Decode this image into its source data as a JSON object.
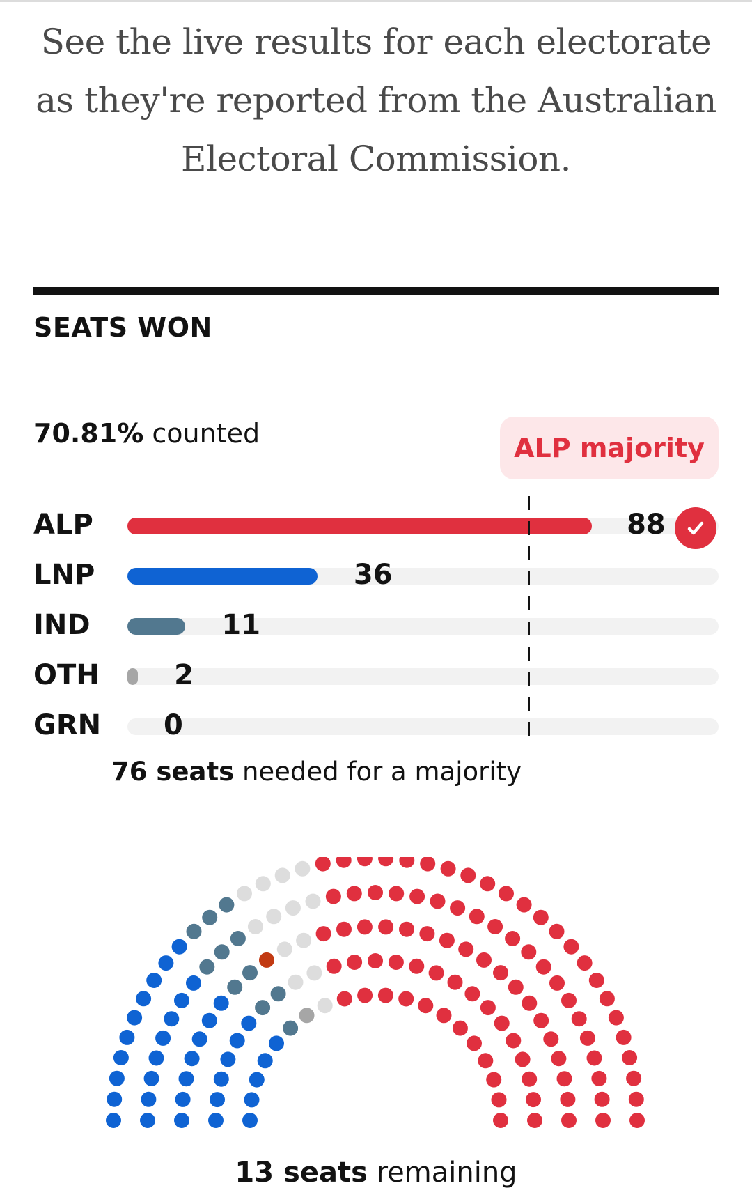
{
  "intro": "See the live results for each electorate as they're reported from the Australian Electoral Commission.",
  "section_title": "SEATS WON",
  "counted": {
    "value": "70.81%",
    "label": "counted"
  },
  "badge": "ALP majority",
  "majority_note": {
    "value": "76 seats",
    "label": "needed for a majority"
  },
  "remaining": {
    "value": "13 seats",
    "label": "remaining"
  },
  "colors": {
    "ALP": "#e0303f",
    "LNP": "#0f63d3",
    "IND": "#52788f",
    "OTH": "#a6a6a6",
    "GRN": "#3aa135",
    "OTH_special": "#c23a12",
    "undecided": "#dddddd",
    "track": "#f2f2f2"
  },
  "chart_data": [
    {
      "type": "bar",
      "orientation": "horizontal",
      "title": "SEATS WON",
      "categories": [
        "ALP",
        "LNP",
        "IND",
        "OTH",
        "GRN"
      ],
      "values": [
        88,
        36,
        11,
        2,
        0
      ],
      "xlim": [
        0,
        112
      ],
      "reference_line": {
        "value": 76
      },
      "winner": "ALP"
    },
    {
      "type": "hemicycle",
      "total_seats": 150,
      "groups": [
        {
          "party": "LNP",
          "seats": 36
        },
        {
          "party": "IND",
          "seats": 11
        },
        {
          "party": "OTH",
          "seats": 2
        },
        {
          "party": "undecided",
          "seats": 13
        },
        {
          "party": "ALP",
          "seats": 88
        }
      ]
    }
  ]
}
